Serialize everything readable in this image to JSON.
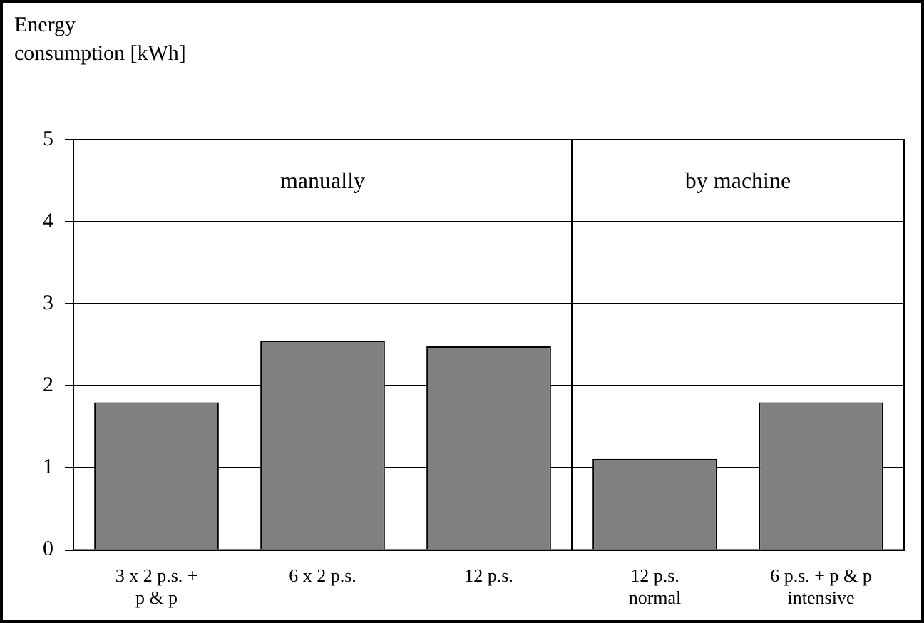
{
  "chart_data": {
    "type": "bar",
    "ylabel": "Energy\nconsumption [kWh]",
    "categories": [
      "3 x 2 p.s. +\np & p",
      "6 x 2 p.s.",
      "12 p.s.",
      "12 p.s.\nnormal",
      "6 p.s. + p & p\nintensive"
    ],
    "values": [
      1.8,
      2.55,
      2.48,
      1.11,
      1.8
    ],
    "color": "#808080",
    "ylim": [
      0,
      5
    ],
    "yticks": [
      0,
      1,
      2,
      3,
      4,
      5
    ],
    "grid": "y",
    "annotations": [
      "manually",
      "by machine"
    ]
  }
}
